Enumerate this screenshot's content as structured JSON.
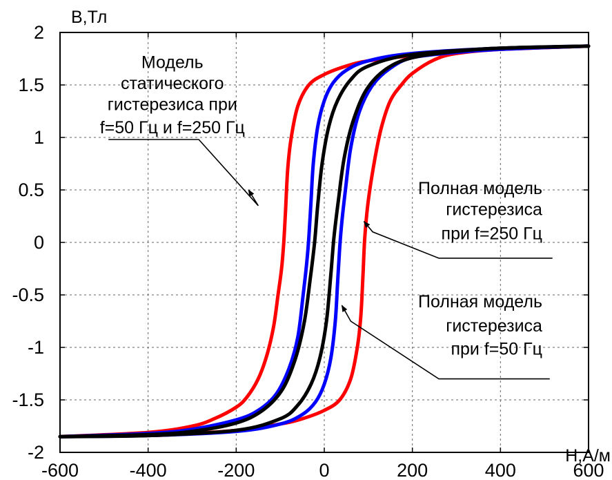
{
  "chart_data": {
    "type": "line",
    "title": "",
    "xlabel": "H,А/м",
    "ylabel": "B,Тл",
    "xlim": [
      -600,
      600
    ],
    "ylim": [
      -2,
      2
    ],
    "xticks": [
      -600,
      -400,
      -200,
      0,
      200,
      400,
      600
    ],
    "yticks": [
      -2,
      -1.5,
      -1,
      -0.5,
      0,
      0.5,
      1,
      1.5,
      2
    ],
    "xtick_labels": [
      "-600",
      "-400",
      "-200",
      "0",
      "200",
      "400",
      "600"
    ],
    "ytick_labels": [
      "-2",
      "-1.5",
      "-1",
      "-0.5",
      "0",
      "0.5",
      "1",
      "1.5",
      "2"
    ],
    "grid": true,
    "series": [
      {
        "color": "#ff0000",
        "hc": 88,
        "upper": [
          [
            -600,
            -1.85
          ],
          [
            -400,
            -1.81
          ],
          [
            -300,
            -1.75
          ],
          [
            -250,
            -1.68
          ],
          [
            -200,
            -1.57
          ],
          [
            -175,
            -1.47
          ],
          [
            -150,
            -1.3
          ],
          [
            -130,
            -1.07
          ],
          [
            -115,
            -0.8
          ],
          [
            -105,
            -0.5
          ],
          [
            -97,
            -0.25
          ],
          [
            -92,
            0.0
          ],
          [
            -88,
            0.3
          ],
          [
            -83,
            0.7
          ],
          [
            -75,
            1.0
          ],
          [
            -60,
            1.3
          ],
          [
            -35,
            1.5
          ],
          [
            0,
            1.6
          ],
          [
            50,
            1.68
          ],
          [
            100,
            1.73
          ],
          [
            200,
            1.78
          ],
          [
            300,
            1.82
          ],
          [
            400,
            1.84
          ],
          [
            600,
            1.87
          ]
        ],
        "lower": [
          [
            600,
            1.87
          ],
          [
            400,
            1.84
          ],
          [
            300,
            1.8
          ],
          [
            250,
            1.74
          ],
          [
            200,
            1.61
          ],
          [
            175,
            1.5
          ],
          [
            150,
            1.35
          ],
          [
            130,
            1.1
          ],
          [
            115,
            0.8
          ],
          [
            100,
            0.4
          ],
          [
            92,
            0.05
          ],
          [
            88,
            -0.3
          ],
          [
            83,
            -0.7
          ],
          [
            75,
            -1.0
          ],
          [
            60,
            -1.3
          ],
          [
            35,
            -1.5
          ],
          [
            0,
            -1.6
          ],
          [
            -50,
            -1.68
          ],
          [
            -100,
            -1.73
          ],
          [
            -200,
            -1.79
          ],
          [
            -300,
            -1.82
          ],
          [
            -400,
            -1.84
          ],
          [
            -600,
            -1.85
          ]
        ]
      },
      {
        "color": "#0000ff",
        "hc": 32,
        "upper": [
          [
            -600,
            -1.85
          ],
          [
            -400,
            -1.82
          ],
          [
            -300,
            -1.78
          ],
          [
            -200,
            -1.69
          ],
          [
            -150,
            -1.6
          ],
          [
            -110,
            -1.45
          ],
          [
            -80,
            -1.2
          ],
          [
            -60,
            -0.9
          ],
          [
            -48,
            -0.5
          ],
          [
            -40,
            -0.2
          ],
          [
            -35,
            0.05
          ],
          [
            -30,
            0.4
          ],
          [
            -25,
            0.75
          ],
          [
            -15,
            1.1
          ],
          [
            0,
            1.35
          ],
          [
            20,
            1.52
          ],
          [
            50,
            1.64
          ],
          [
            100,
            1.73
          ],
          [
            200,
            1.8
          ],
          [
            400,
            1.85
          ],
          [
            600,
            1.87
          ]
        ],
        "lower": [
          [
            600,
            1.87
          ],
          [
            400,
            1.84
          ],
          [
            300,
            1.81
          ],
          [
            200,
            1.76
          ],
          [
            150,
            1.66
          ],
          [
            110,
            1.5
          ],
          [
            80,
            1.25
          ],
          [
            60,
            0.9
          ],
          [
            48,
            0.5
          ],
          [
            40,
            0.2
          ],
          [
            35,
            -0.05
          ],
          [
            30,
            -0.4
          ],
          [
            25,
            -0.75
          ],
          [
            15,
            -1.1
          ],
          [
            0,
            -1.35
          ],
          [
            -20,
            -1.52
          ],
          [
            -50,
            -1.64
          ],
          [
            -100,
            -1.73
          ],
          [
            -200,
            -1.8
          ],
          [
            -400,
            -1.84
          ],
          [
            -600,
            -1.85
          ]
        ]
      },
      {
        "color": "#000000",
        "hc": 13,
        "upper": [
          [
            -600,
            -1.85
          ],
          [
            -400,
            -1.83
          ],
          [
            -300,
            -1.8
          ],
          [
            -200,
            -1.72
          ],
          [
            -140,
            -1.6
          ],
          [
            -95,
            -1.4
          ],
          [
            -65,
            -1.1
          ],
          [
            -45,
            -0.75
          ],
          [
            -32,
            -0.35
          ],
          [
            -22,
            0.0
          ],
          [
            -15,
            0.35
          ],
          [
            -5,
            0.75
          ],
          [
            10,
            1.1
          ],
          [
            30,
            1.35
          ],
          [
            60,
            1.55
          ],
          [
            100,
            1.68
          ],
          [
            200,
            1.79
          ],
          [
            400,
            1.85
          ],
          [
            600,
            1.87
          ]
        ],
        "lower": [
          [
            600,
            1.87
          ],
          [
            400,
            1.85
          ],
          [
            300,
            1.82
          ],
          [
            200,
            1.76
          ],
          [
            140,
            1.65
          ],
          [
            95,
            1.45
          ],
          [
            65,
            1.15
          ],
          [
            45,
            0.8
          ],
          [
            32,
            0.4
          ],
          [
            22,
            0.05
          ],
          [
            15,
            -0.3
          ],
          [
            5,
            -0.75
          ],
          [
            -10,
            -1.1
          ],
          [
            -30,
            -1.35
          ],
          [
            -60,
            -1.55
          ],
          [
            -100,
            -1.68
          ],
          [
            -200,
            -1.79
          ],
          [
            -400,
            -1.84
          ],
          [
            -600,
            -1.85
          ]
        ]
      }
    ],
    "annotations": [
      {
        "lines": [
          "Модель",
          "статического",
          "гистерезиса при",
          "f=50 Гц и f=250 Гц"
        ],
        "align": "middle",
        "text_x": -345,
        "text_y": [
          1.66,
          1.46,
          1.26,
          1.04
        ],
        "leader": [
          [
            -490,
            0.98
          ],
          [
            -285,
            0.98
          ],
          [
            -150,
            0.35
          ]
        ],
        "arrow_tip": [
          -172,
          0.5
        ]
      },
      {
        "lines": [
          "Полная модель",
          "гистерезиса",
          "при f=250 Гц"
        ],
        "align": "end",
        "text_x": 495,
        "text_y": [
          0.46,
          0.26,
          0.03
        ],
        "leader": [
          [
            518,
            -0.15
          ],
          [
            260,
            -0.15
          ],
          [
            110,
            0.1
          ]
        ],
        "arrow_tip": [
          90,
          0.2
        ]
      },
      {
        "lines": [
          "Полная модель",
          "гистерезиса",
          "при f=50 Гц"
        ],
        "align": "end",
        "text_x": 495,
        "text_y": [
          -0.62,
          -0.85,
          -1.07
        ],
        "leader": [
          [
            512,
            -1.3
          ],
          [
            260,
            -1.3
          ],
          [
            60,
            -0.75
          ]
        ],
        "arrow_tip": [
          40,
          -0.6
        ]
      }
    ]
  }
}
